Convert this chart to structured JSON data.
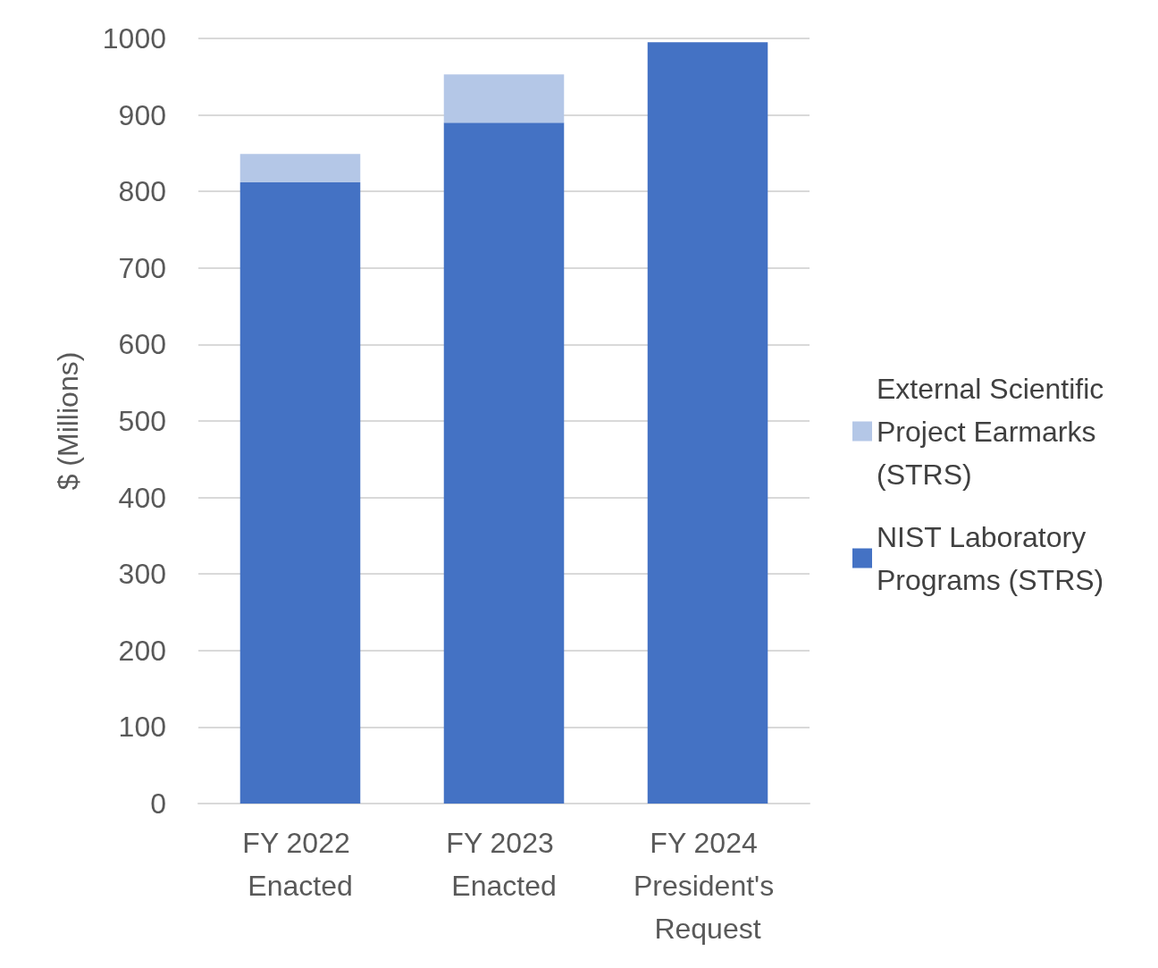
{
  "chart_data": {
    "type": "bar",
    "ylabel": "$ (Millions)",
    "categories": [
      "FY 2022 Enacted",
      "FY 2023 Enacted",
      "FY 2024 President's Request"
    ],
    "series": [
      {
        "name": "NIST Laboratory Programs (STRS)",
        "color": "#4472c4",
        "values": [
          812,
          890,
          995
        ]
      },
      {
        "name": "External Scientific Project Earmarks (STRS)",
        "color": "#b4c7e7",
        "values": [
          37,
          63,
          null
        ]
      }
    ],
    "stacked": true,
    "ylim": [
      0,
      1000
    ],
    "yticks": [
      0,
      100,
      200,
      300,
      400,
      500,
      600,
      700,
      800,
      900,
      1000
    ],
    "grid": "y",
    "legend": "right"
  }
}
